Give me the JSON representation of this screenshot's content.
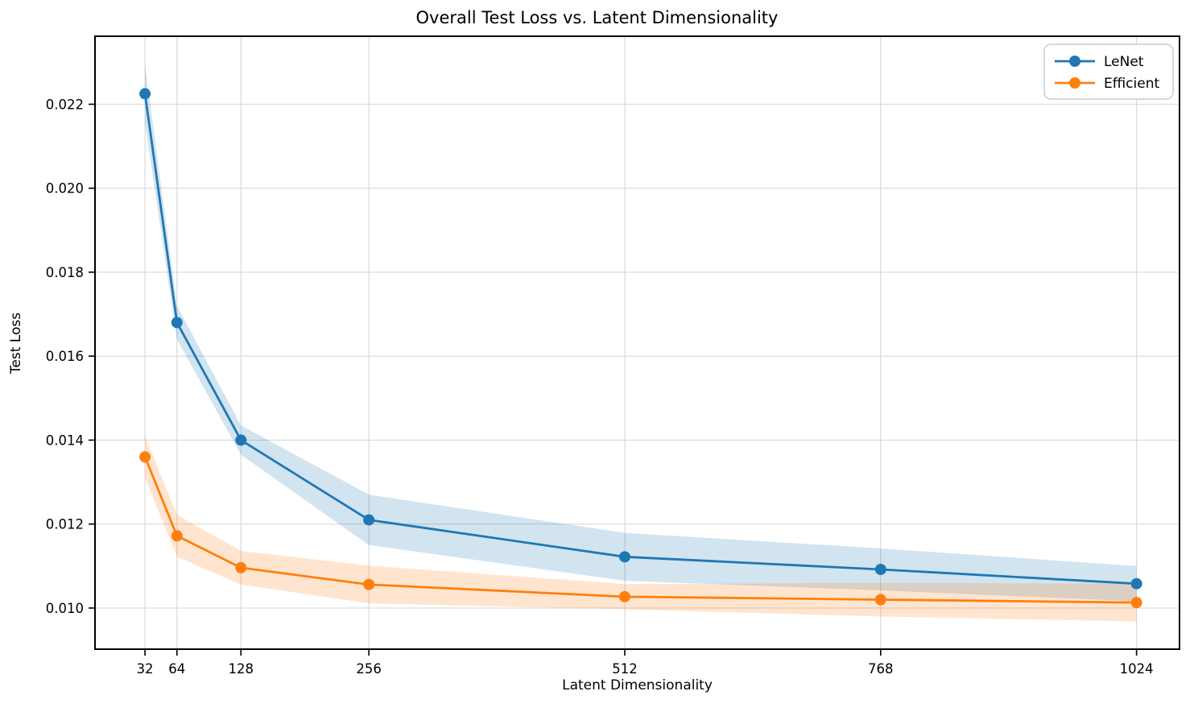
{
  "chart_data": {
    "type": "line",
    "title": "Overall Test Loss vs. Latent Dimensionality",
    "xlabel": "Latent Dimensionality",
    "ylabel": "Test Loss",
    "x": [
      32,
      64,
      128,
      256,
      512,
      768,
      1024
    ],
    "series": [
      {
        "name": "LeNet",
        "color": "#1f77b4",
        "values": [
          0.02225,
          0.0168,
          0.014,
          0.0121,
          0.01122,
          0.01092,
          0.01058
        ],
        "std": [
          0.0007,
          0.0004,
          0.00035,
          0.0006,
          0.00057,
          0.0005,
          0.00042
        ]
      },
      {
        "name": "Efficient",
        "color": "#ff7f0e",
        "values": [
          0.0136,
          0.01172,
          0.01096,
          0.01056,
          0.01027,
          0.0102,
          0.01013
        ],
        "std": [
          0.0005,
          0.0005,
          0.0004,
          0.00045,
          0.0003,
          0.0004,
          0.00045
        ]
      }
    ],
    "xticks": [
      32,
      64,
      128,
      256,
      512,
      768,
      1024
    ],
    "xtick_labels": [
      "32",
      "64",
      "128",
      "256",
      "512",
      "768",
      "1024"
    ],
    "yticks": [
      0.01,
      0.012,
      0.014,
      0.016,
      0.018,
      0.02,
      0.022
    ],
    "ytick_labels": [
      "0.010",
      "0.012",
      "0.014",
      "0.016",
      "0.018",
      "0.020",
      "0.022"
    ],
    "xlim": [
      -18,
      1067
    ],
    "ylim": [
      0.00902,
      0.02362
    ],
    "grid": true,
    "grid_color": "#d9d9d9",
    "band_opacity": 0.2,
    "legend_position": "upper right",
    "background": "#ffffff",
    "spine_color": "#000000",
    "tick_color": "#000000"
  }
}
